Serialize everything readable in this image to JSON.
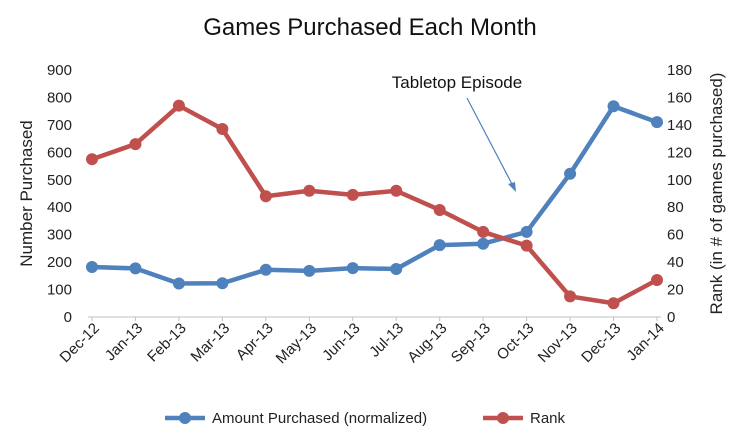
{
  "chart_data": {
    "type": "line",
    "title": "Games Purchased Each Month",
    "ylabel_left": "Number Purchased",
    "ylabel_right": "Rank (in # of games purchased)",
    "categories": [
      "Dec-12",
      "Jan-13",
      "Feb-13",
      "Mar-13",
      "Apr-13",
      "May-13",
      "Jun-13",
      "Jul-13",
      "Aug-13",
      "Sep-13",
      "Oct-13",
      "Nov-13",
      "Dec-13",
      "Jan-14"
    ],
    "ylim_left": [
      0,
      900
    ],
    "ylim_right": [
      0,
      180
    ],
    "yticks_left": [
      "0",
      "100",
      "200",
      "300",
      "400",
      "500",
      "600",
      "700",
      "800",
      "900"
    ],
    "yticks_right": [
      "0",
      "20",
      "40",
      "60",
      "80",
      "100",
      "120",
      "140",
      "160",
      "180"
    ],
    "series": [
      {
        "name": "Amount Purchased (normalized)",
        "axis": "left",
        "color": "#4f81bd",
        "values": [
          182,
          177,
          122,
          123,
          172,
          168,
          178,
          175,
          262,
          267,
          310,
          522,
          768,
          710
        ]
      },
      {
        "name": "Rank",
        "axis": "right",
        "color": "#c0504d",
        "values": [
          115,
          126,
          154,
          137,
          88,
          92,
          89,
          92,
          78,
          62,
          52,
          15,
          10,
          27
        ]
      }
    ],
    "annotation": {
      "text": "Tabletop Episode",
      "points_to_category": "Oct-13"
    },
    "grid": false,
    "legend": "bottom"
  }
}
